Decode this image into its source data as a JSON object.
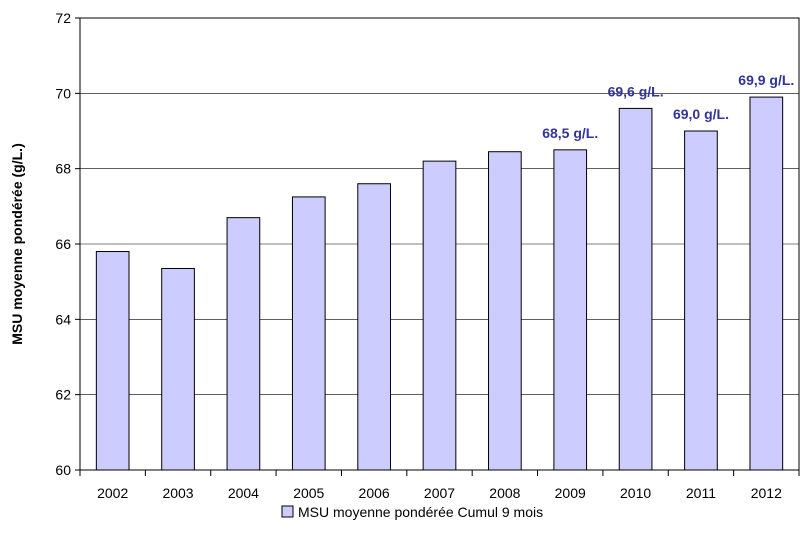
{
  "chart_data": {
    "type": "bar",
    "categories": [
      "2002",
      "2003",
      "2004",
      "2005",
      "2006",
      "2007",
      "2008",
      "2009",
      "2010",
      "2011",
      "2012"
    ],
    "series": [
      {
        "name": "MSU moyenne pondérée Cumul 9 mois",
        "values": [
          65.8,
          65.35,
          66.7,
          67.25,
          67.6,
          68.2,
          68.45,
          68.5,
          69.6,
          69.0,
          69.9
        ]
      }
    ],
    "data_labels": [
      {
        "category": "2009",
        "text": "68,5 g/L."
      },
      {
        "category": "2010",
        "text": "69,6 g/L."
      },
      {
        "category": "2011",
        "text": "69,0 g/L."
      },
      {
        "category": "2012",
        "text": "69,9 g/L."
      }
    ],
    "title": "",
    "xlabel": "",
    "ylabel": "MSU moyenne pondérée (g/L.)",
    "ylim": [
      60,
      72
    ],
    "yticks": [
      60,
      62,
      64,
      66,
      68,
      70,
      72
    ],
    "grid": true,
    "legend": "bottom",
    "colors": {
      "bar_fill": "#ccccff",
      "bar_stroke": "#000000",
      "data_label": "#333399",
      "gridline": "#000000"
    }
  }
}
